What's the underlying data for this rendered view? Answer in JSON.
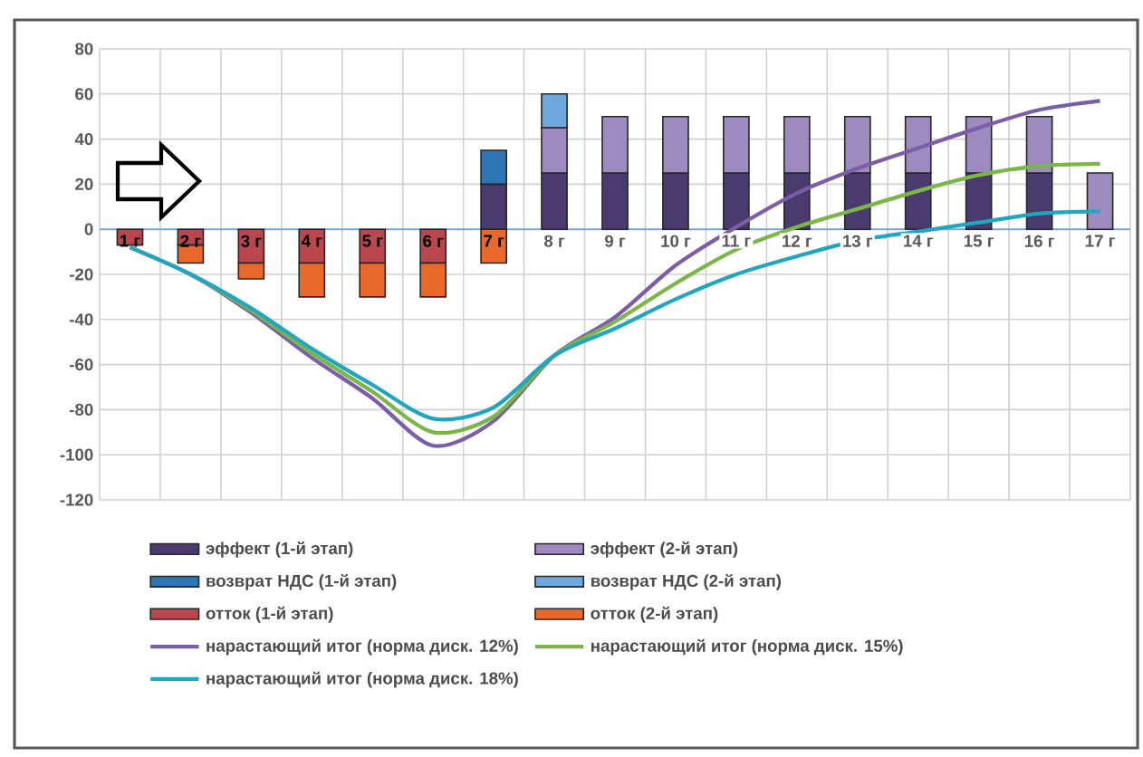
{
  "chart_data": {
    "type": "bar",
    "stacked": true,
    "categories": [
      "1 г",
      "2 г",
      "3 г",
      "4 г",
      "5 г",
      "6 г",
      "7 г",
      "8 г",
      "9 г",
      "10 г",
      "11 г",
      "12 г",
      "13 г",
      "14 г",
      "15 г",
      "16 г",
      "17 г"
    ],
    "series": [
      {
        "name": "эффект (1-й этап)",
        "color": "#4a3b6e",
        "values": [
          null,
          null,
          null,
          null,
          null,
          null,
          20,
          25,
          25,
          25,
          25,
          25,
          25,
          25,
          25,
          25,
          null
        ]
      },
      {
        "name": "эффект (2-й этап)",
        "color": "#9d8bbf",
        "values": [
          null,
          null,
          null,
          null,
          null,
          null,
          null,
          20,
          25,
          25,
          25,
          25,
          25,
          25,
          25,
          25,
          25
        ]
      },
      {
        "name": "возврат НДС (1-й этап)",
        "color": "#2e75b6",
        "values": [
          null,
          null,
          null,
          null,
          null,
          null,
          15,
          null,
          null,
          null,
          null,
          null,
          null,
          null,
          null,
          null,
          null
        ]
      },
      {
        "name": "возврат НДС (2-й этап)",
        "color": "#6fa8dc",
        "values": [
          null,
          null,
          null,
          null,
          null,
          null,
          null,
          15,
          null,
          null,
          null,
          null,
          null,
          null,
          null,
          null,
          null
        ]
      },
      {
        "name": "отток (1-й этап)",
        "color": "#b9474d",
        "values": [
          -7,
          -7,
          -15,
          -15,
          -15,
          -15,
          null,
          null,
          null,
          null,
          null,
          null,
          null,
          null,
          null,
          null,
          null
        ]
      },
      {
        "name": "отток (2-й этап)",
        "color": "#e8692a",
        "values": [
          null,
          -8,
          -7,
          -15,
          -15,
          -15,
          -15,
          null,
          null,
          null,
          null,
          null,
          null,
          null,
          null,
          null,
          null
        ]
      },
      {
        "name": "нарастающий итог (норма диск. 12%)",
        "type": "line",
        "color": "#7b5ea7",
        "values": [
          -8,
          -20,
          -37,
          -57,
          -75,
          -96,
          -85,
          -56,
          -39,
          -16,
          1,
          16,
          27,
          36,
          45,
          53,
          57
        ]
      },
      {
        "name": "нарастающий итог (норма диск. 15%)",
        "type": "line",
        "color": "#7ab648",
        "values": [
          -8,
          -20,
          -36,
          -55,
          -72,
          -90,
          -83,
          -56,
          -41,
          -24,
          -9,
          1,
          9,
          17,
          24,
          28,
          29
        ]
      },
      {
        "name": "нарастающий итог (норма диск. 18%)",
        "type": "line",
        "color": "#21a6c0",
        "values": [
          -8,
          -20,
          -35,
          -53,
          -69,
          -84,
          -79,
          -56,
          -44,
          -31,
          -20,
          -12,
          -5,
          -1,
          3,
          7,
          8
        ]
      }
    ],
    "ylim": [
      -120,
      80
    ],
    "yticks": [
      -120,
      -100,
      -80,
      -60,
      -40,
      -20,
      0,
      20,
      40,
      60,
      80
    ],
    "grid": true,
    "legend": "bottom"
  }
}
